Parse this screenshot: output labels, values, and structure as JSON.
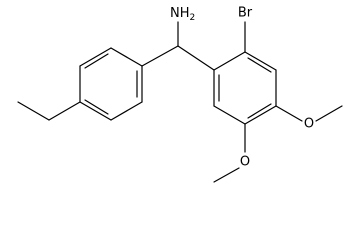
{
  "molecule": {
    "atoms": [
      {
        "label": "NH",
        "subscript": "2"
      },
      {
        "label": "Br"
      },
      {
        "label": "O"
      },
      {
        "label": "O"
      }
    ]
  }
}
